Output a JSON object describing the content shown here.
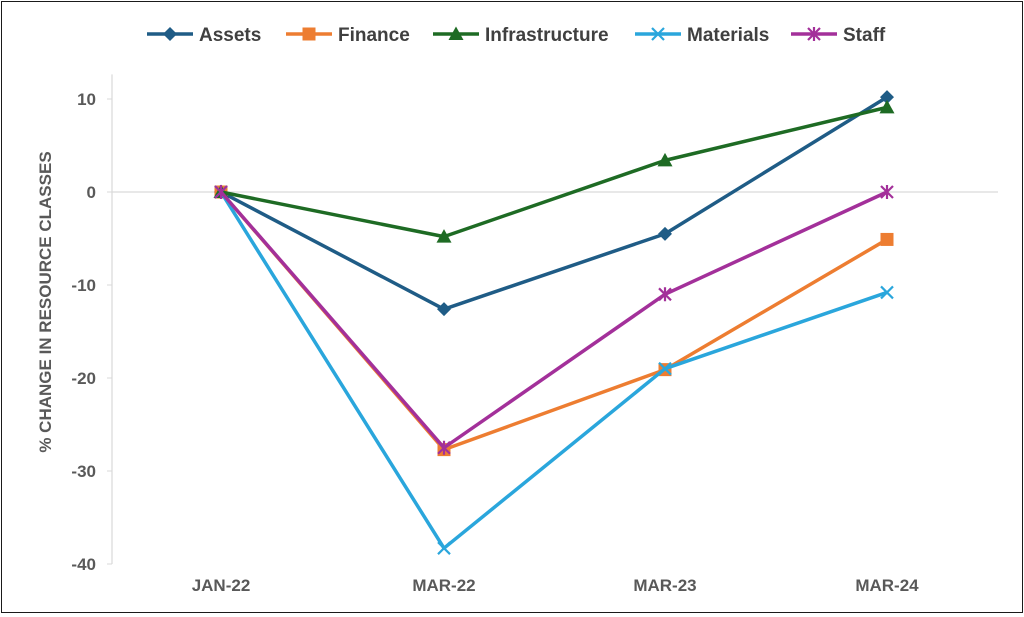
{
  "chart_data": {
    "type": "line",
    "categories": [
      "JAN-22",
      "MAR-22",
      "MAR-23",
      "MAR-24"
    ],
    "ylabel": "% CHANGE IN RESOURCE CLASSES",
    "xlabel": "",
    "title": "",
    "ylim": [
      -40,
      12
    ],
    "yticks": [
      10,
      0,
      -10,
      -20,
      -30,
      -40
    ],
    "grid": false,
    "legend_position": "top",
    "series": [
      {
        "name": "Assets",
        "color": "#1f5c86",
        "marker": "diamond",
        "values": [
          0,
          -12.6,
          -4.5,
          10.2
        ]
      },
      {
        "name": "Finance",
        "color": "#ed7d31",
        "marker": "square",
        "values": [
          0,
          -27.7,
          -19.1,
          -5.1
        ]
      },
      {
        "name": "Infrastructure",
        "color": "#1e6b24",
        "marker": "triangle",
        "values": [
          0,
          -4.8,
          3.4,
          9.1
        ]
      },
      {
        "name": "Materials",
        "color": "#2aa6dc",
        "marker": "x",
        "values": [
          0,
          -38.3,
          -19.0,
          -10.8
        ]
      },
      {
        "name": "Staff",
        "color": "#a3309a",
        "marker": "star",
        "values": [
          0,
          -27.5,
          -11.0,
          0
        ]
      }
    ]
  }
}
